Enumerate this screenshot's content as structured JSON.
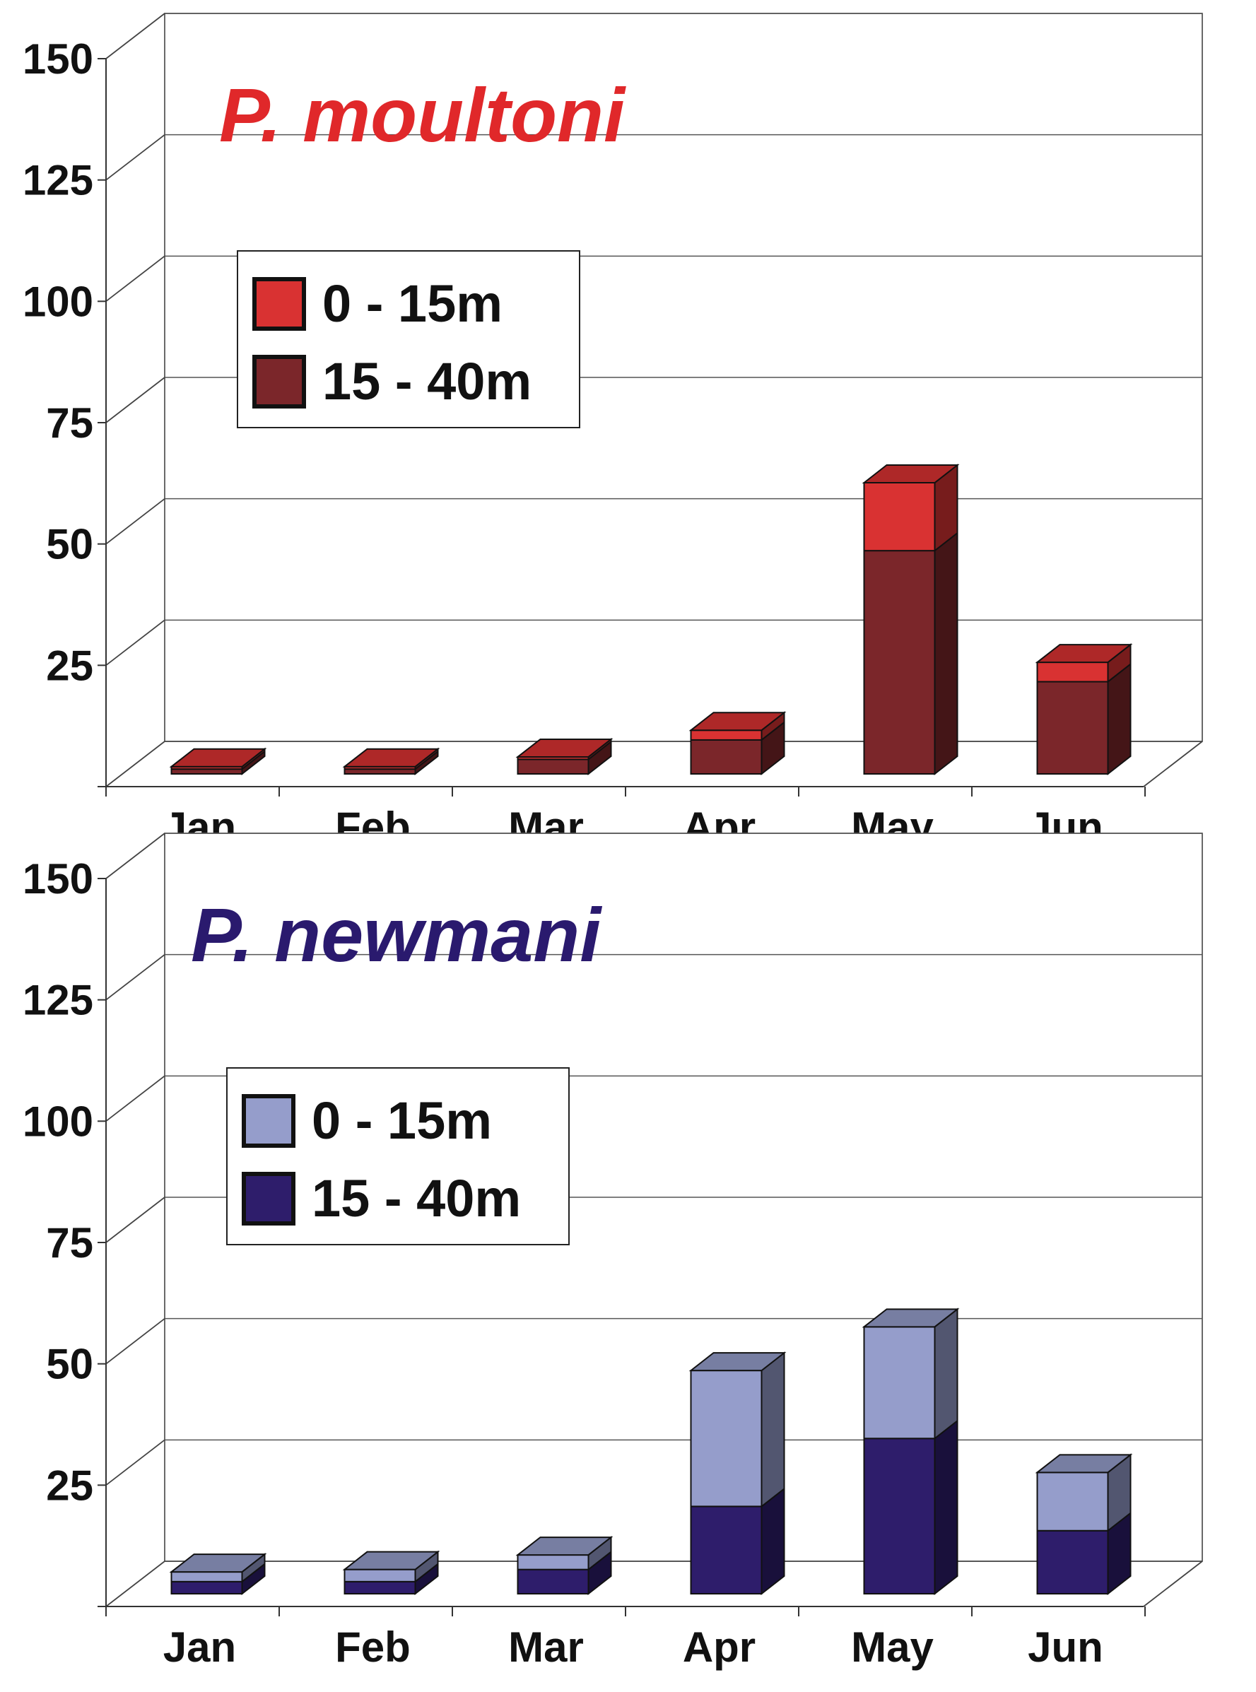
{
  "chart_data": [
    {
      "type": "bar",
      "stacked": true,
      "three_d": true,
      "title": "P. moultoni",
      "title_color": "#e0282a",
      "categories": [
        "Jan",
        "Feb",
        "Mar",
        "Apr",
        "May",
        "Jun"
      ],
      "yticks": [
        "25",
        "50",
        "75",
        "100",
        "125",
        "150"
      ],
      "ylim": [
        0,
        150
      ],
      "grid": true,
      "legend_position": "top-left",
      "series": [
        {
          "name": "15 - 40m",
          "color": "#7b262a",
          "values": [
            1,
            1,
            3,
            7,
            46,
            19
          ]
        },
        {
          "name": "0 - 15m",
          "color": "#d93232",
          "values": [
            0.5,
            0.5,
            0.5,
            2,
            14,
            4
          ]
        }
      ]
    },
    {
      "type": "bar",
      "stacked": true,
      "three_d": true,
      "title": "P. newmani",
      "title_color": "#2a1a6e",
      "categories": [
        "Jan",
        "Feb",
        "Mar",
        "Apr",
        "May",
        "Jun"
      ],
      "yticks": [
        "25",
        "50",
        "75",
        "100",
        "125",
        "150"
      ],
      "ylim": [
        0,
        150
      ],
      "grid": true,
      "legend_position": "top-left",
      "series": [
        {
          "name": "15 - 40m",
          "color": "#2e1d6b",
          "values": [
            2.5,
            2.5,
            5,
            18,
            32,
            13
          ]
        },
        {
          "name": "0 - 15m",
          "color": "#959dcb",
          "values": [
            2,
            2.5,
            3,
            28,
            23,
            12
          ]
        }
      ]
    }
  ]
}
